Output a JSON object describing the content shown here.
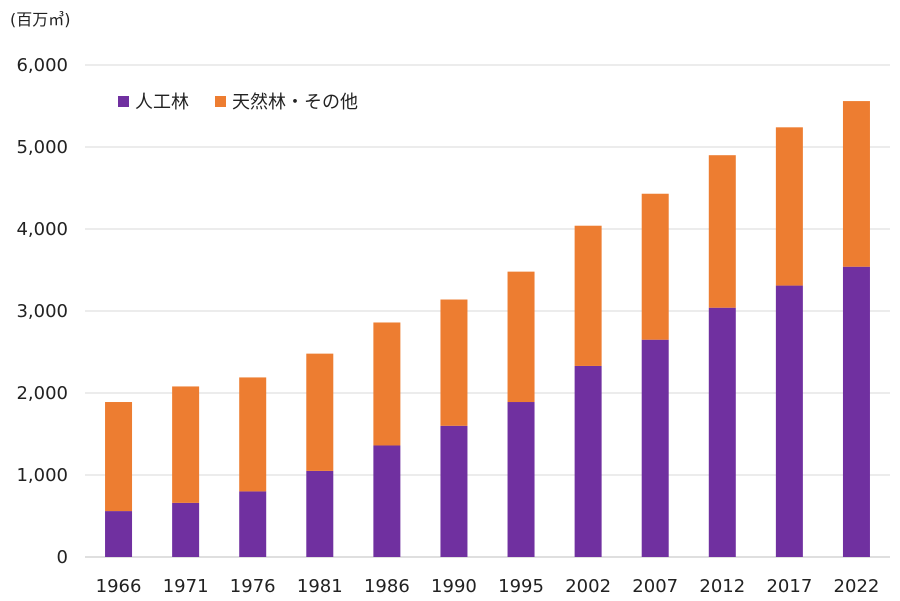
{
  "chart_data": {
    "type": "bar",
    "stacked": true,
    "unit_label": "(百万㎥)",
    "categories": [
      "1966",
      "1971",
      "1976",
      "1981",
      "1986",
      "1990",
      "1995",
      "2002",
      "2007",
      "2012",
      "2017",
      "2022"
    ],
    "series": [
      {
        "name": "人工林",
        "color": "#7030a0",
        "values": [
          560,
          660,
          800,
          1050,
          1360,
          1600,
          1890,
          2330,
          2650,
          3040,
          3310,
          3540
        ]
      },
      {
        "name": "天然林・その他",
        "color": "#ed7d31",
        "values": [
          1330,
          1420,
          1390,
          1430,
          1500,
          1540,
          1590,
          1710,
          1780,
          1860,
          1930,
          2020
        ]
      }
    ],
    "ylim": [
      0,
      6000
    ],
    "yticks": [
      "0",
      "1,000",
      "2,000",
      "3,000",
      "4,000",
      "5,000",
      "6,000"
    ],
    "grid": true,
    "legend_position": "top-left"
  }
}
